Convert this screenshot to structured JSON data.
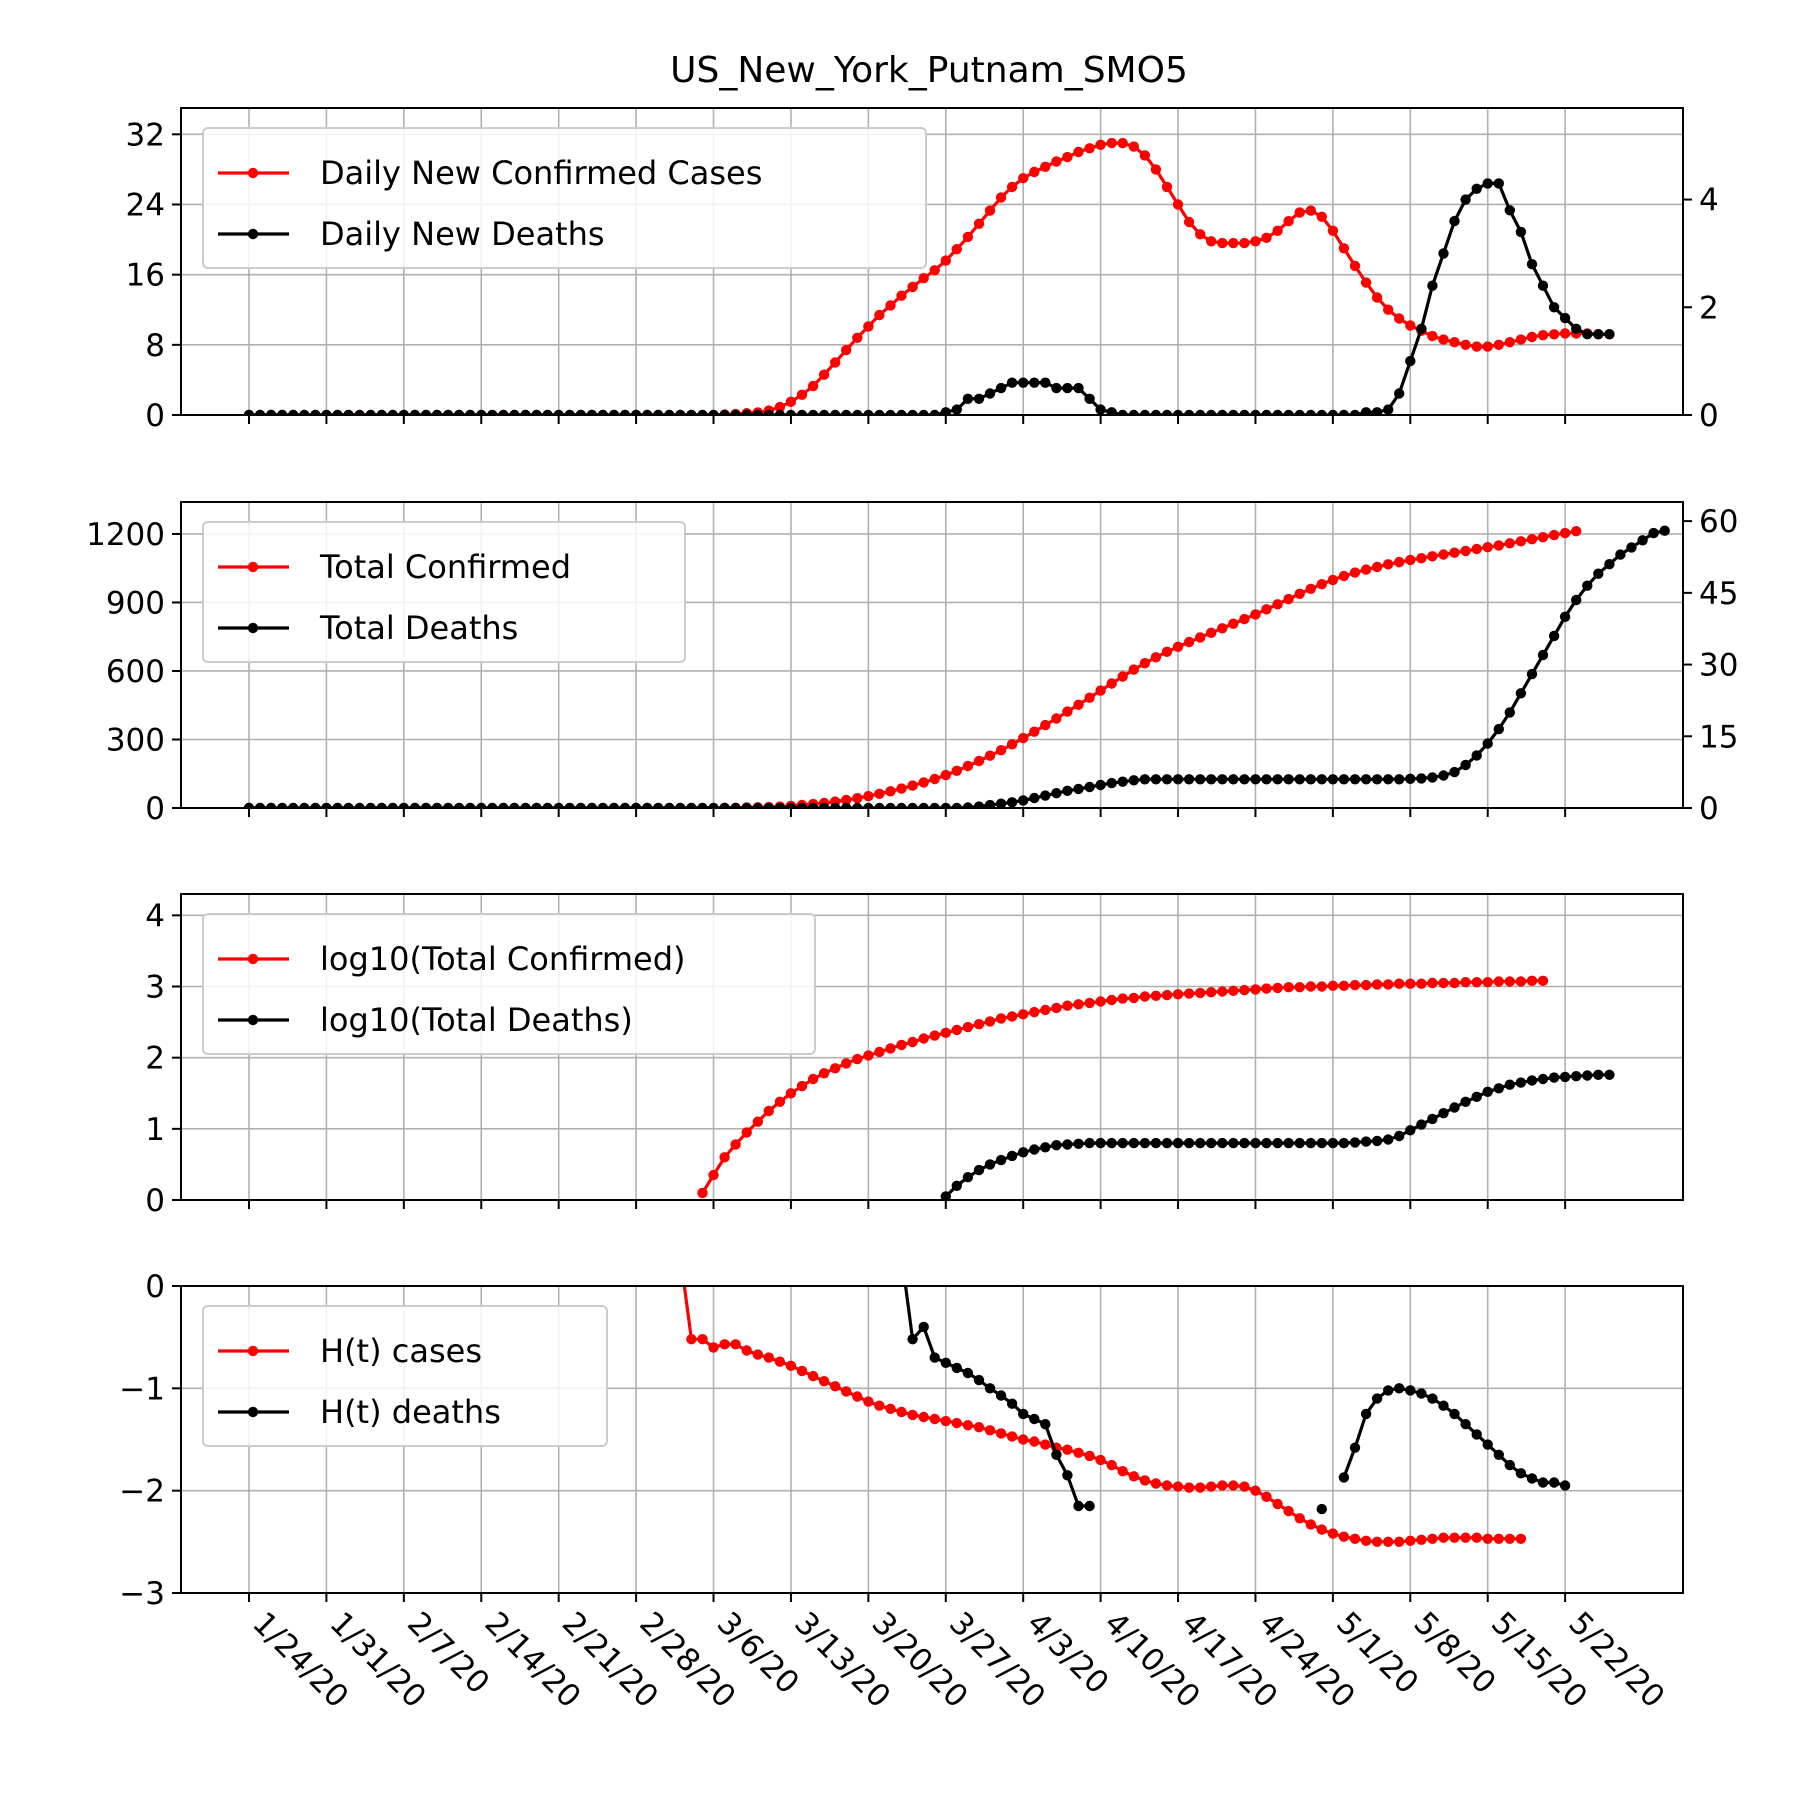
{
  "title": "US_New_York_Putnam_SMO5",
  "x_tick_labels": [
    "1/24/20",
    "1/31/20",
    "2/7/20",
    "2/14/20",
    "2/21/20",
    "2/28/20",
    "3/6/20",
    "3/13/20",
    "3/20/20",
    "3/27/20",
    "4/3/20",
    "4/10/20",
    "4/17/20",
    "4/24/20",
    "5/1/20",
    "5/8/20",
    "5/15/20",
    "5/22/20"
  ],
  "colors": {
    "cases": "#ff0000",
    "deaths": "#000000"
  },
  "chart_data": [
    {
      "type": "line",
      "x_start": "1/24/20",
      "x_step_days": 1,
      "left_yticks": [
        "0",
        "8",
        "16",
        "24",
        "32"
      ],
      "right_yticks": [
        "0",
        "2",
        "4"
      ],
      "left_ylim": [
        0,
        35
      ],
      "right_ylim": [
        0,
        5.7
      ],
      "legend": "top-left",
      "grid": true,
      "series": [
        {
          "name": "Daily New Confirmed Cases",
          "axis": "left",
          "color": "#ff0000",
          "values": [
            0,
            0,
            0,
            0,
            0,
            0,
            0,
            0,
            0,
            0,
            0,
            0,
            0,
            0,
            0,
            0,
            0,
            0,
            0,
            0,
            0,
            0,
            0,
            0,
            0,
            0,
            0,
            0,
            0,
            0,
            0,
            0,
            0,
            0,
            0,
            0,
            0,
            0,
            0,
            0,
            0,
            0,
            0,
            0.05,
            0.1,
            0.2,
            0.3,
            0.5,
            0.9,
            1.5,
            2.3,
            3.3,
            4.6,
            6.0,
            7.4,
            8.8,
            10.1,
            11.4,
            12.5,
            13.6,
            14.6,
            15.6,
            16.5,
            17.6,
            18.9,
            20.3,
            21.8,
            23.3,
            24.8,
            26.0,
            27.0,
            27.7,
            28.3,
            28.9,
            29.4,
            30.0,
            30.4,
            30.8,
            31.0,
            31.0,
            30.6,
            29.6,
            28.0,
            26.0,
            24.0,
            22.0,
            20.6,
            19.8,
            19.6,
            19.6,
            19.6,
            19.8,
            20.2,
            21.0,
            22.1,
            23.1,
            23.3,
            22.6,
            21.0,
            19.0,
            17.0,
            15.1,
            13.4,
            12.0,
            11.0,
            10.2,
            9.6,
            9.0,
            8.6,
            8.3,
            8.0,
            7.8,
            7.8,
            8.0,
            8.3,
            8.6,
            8.9,
            9.1,
            9.2,
            9.3,
            9.3,
            9.3,
            9.2,
            9.2
          ]
        },
        {
          "name": "Daily New Deaths",
          "axis": "right",
          "color": "#000000",
          "values": [
            0,
            0,
            0,
            0,
            0,
            0,
            0,
            0,
            0,
            0,
            0,
            0,
            0,
            0,
            0,
            0,
            0,
            0,
            0,
            0,
            0,
            0,
            0,
            0,
            0,
            0,
            0,
            0,
            0,
            0,
            0,
            0,
            0,
            0,
            0,
            0,
            0,
            0,
            0,
            0,
            0,
            0,
            0,
            0,
            0,
            0,
            0,
            0,
            0,
            0,
            0,
            0,
            0,
            0,
            0,
            0,
            0,
            0,
            0,
            0,
            0,
            0,
            0,
            0.05,
            0.1,
            0.3,
            0.3,
            0.4,
            0.5,
            0.6,
            0.6,
            0.6,
            0.6,
            0.5,
            0.5,
            0.5,
            0.3,
            0.1,
            0.05,
            0,
            0,
            0,
            0,
            0,
            0,
            0,
            0,
            0,
            0,
            0,
            0,
            0,
            0,
            0,
            0,
            0,
            0,
            0,
            0,
            0,
            0,
            0.05,
            0.05,
            0.1,
            0.4,
            1.0,
            1.6,
            2.4,
            3.0,
            3.6,
            4.0,
            4.2,
            4.3,
            4.3,
            3.8,
            3.4,
            2.8,
            2.4,
            2.0,
            1.8,
            1.6,
            1.5,
            1.5,
            1.5
          ]
        }
      ]
    },
    {
      "type": "line",
      "x_start": "1/24/20",
      "x_step_days": 1,
      "left_yticks": [
        "0",
        "300",
        "600",
        "900",
        "1200"
      ],
      "right_yticks": [
        "0",
        "15",
        "30",
        "45",
        "60"
      ],
      "left_ylim": [
        0,
        1340
      ],
      "right_ylim": [
        0,
        64
      ],
      "legend": "top-left",
      "grid": true,
      "series": [
        {
          "name": "Total Confirmed",
          "axis": "left",
          "color": "#ff0000",
          "values": [
            0,
            0,
            0,
            0,
            0,
            0,
            0,
            0,
            0,
            0,
            0,
            0,
            0,
            0,
            0,
            0,
            0,
            0,
            0,
            0,
            0,
            0,
            0,
            0,
            0,
            0,
            0,
            0,
            0,
            0,
            0,
            0,
            0,
            0,
            0,
            0,
            0,
            0,
            0,
            0,
            0,
            0,
            0,
            1,
            1,
            2,
            3,
            4,
            6,
            9,
            13,
            17,
            22,
            28,
            35,
            43,
            52,
            62,
            73,
            85,
            98,
            112,
            127,
            144,
            163,
            184,
            206,
            229,
            253,
            279,
            306,
            334,
            363,
            392,
            422,
            452,
            483,
            514,
            545,
            576,
            606,
            634,
            660,
            684,
            706,
            727,
            747,
            767,
            787,
            807,
            827,
            848,
            870,
            892,
            915,
            938,
            960,
            980,
            999,
            1016,
            1031,
            1044,
            1056,
            1067,
            1077,
            1086,
            1094,
            1102,
            1110,
            1118,
            1126,
            1134,
            1142,
            1150,
            1159,
            1168,
            1177,
            1186,
            1195,
            1204,
            1212
          ]
        },
        {
          "name": "Total Deaths",
          "axis": "right",
          "color": "#000000",
          "values": [
            0,
            0,
            0,
            0,
            0,
            0,
            0,
            0,
            0,
            0,
            0,
            0,
            0,
            0,
            0,
            0,
            0,
            0,
            0,
            0,
            0,
            0,
            0,
            0,
            0,
            0,
            0,
            0,
            0,
            0,
            0,
            0,
            0,
            0,
            0,
            0,
            0,
            0,
            0,
            0,
            0,
            0,
            0,
            0,
            0,
            0,
            0,
            0,
            0,
            0,
            0,
            0,
            0,
            0,
            0,
            0,
            0,
            0,
            0,
            0,
            0,
            0,
            0,
            0,
            0,
            0.1,
            0.3,
            0.6,
            0.9,
            1.2,
            1.6,
            2.1,
            2.6,
            3.1,
            3.6,
            4.0,
            4.4,
            4.8,
            5.2,
            5.5,
            5.8,
            6,
            6,
            6,
            6,
            6,
            6,
            6,
            6,
            6,
            6,
            6,
            6,
            6,
            6,
            6,
            6,
            6,
            6,
            6,
            6,
            6,
            6,
            6,
            6,
            6.1,
            6.2,
            6.4,
            6.8,
            7.5,
            9.0,
            11.0,
            13.5,
            16.5,
            20.0,
            24.0,
            28.0,
            32.0,
            36.0,
            40.0,
            43.5,
            46.5,
            49.0,
            51.0,
            53.0,
            54.5,
            56.0,
            57.5,
            58.0
          ]
        }
      ]
    },
    {
      "type": "line",
      "x_start": "1/24/20",
      "x_step_days": 1,
      "left_yticks": [
        "0",
        "1",
        "2",
        "3",
        "4"
      ],
      "left_ylim": [
        0,
        4.3
      ],
      "legend": "top-left",
      "grid": true,
      "series": [
        {
          "name": "log10(Total Confirmed)",
          "axis": "left",
          "color": "#ff0000",
          "values": [
            null,
            null,
            null,
            null,
            null,
            null,
            null,
            null,
            null,
            null,
            null,
            null,
            null,
            null,
            null,
            null,
            null,
            null,
            null,
            null,
            null,
            null,
            null,
            null,
            null,
            null,
            null,
            null,
            null,
            null,
            null,
            null,
            null,
            null,
            null,
            null,
            null,
            null,
            null,
            null,
            null,
            0.1,
            0.35,
            0.6,
            0.78,
            0.95,
            1.1,
            1.25,
            1.38,
            1.5,
            1.6,
            1.7,
            1.78,
            1.85,
            1.92,
            1.98,
            2.03,
            2.08,
            2.13,
            2.18,
            2.22,
            2.27,
            2.31,
            2.35,
            2.39,
            2.43,
            2.47,
            2.51,
            2.55,
            2.58,
            2.61,
            2.64,
            2.67,
            2.7,
            2.73,
            2.75,
            2.77,
            2.79,
            2.81,
            2.83,
            2.84,
            2.86,
            2.87,
            2.88,
            2.89,
            2.9,
            2.91,
            2.92,
            2.93,
            2.94,
            2.95,
            2.96,
            2.97,
            2.98,
            2.99,
            2.99,
            3.0,
            3.0,
            3.01,
            3.01,
            3.02,
            3.02,
            3.03,
            3.03,
            3.04,
            3.04,
            3.04,
            3.05,
            3.05,
            3.05,
            3.06,
            3.06,
            3.06,
            3.07,
            3.07,
            3.07,
            3.08,
            3.08
          ]
        },
        {
          "name": "log10(Total Deaths)",
          "axis": "left",
          "color": "#000000",
          "values": [
            null,
            null,
            null,
            null,
            null,
            null,
            null,
            null,
            null,
            null,
            null,
            null,
            null,
            null,
            null,
            null,
            null,
            null,
            null,
            null,
            null,
            null,
            null,
            null,
            null,
            null,
            null,
            null,
            null,
            null,
            null,
            null,
            null,
            null,
            null,
            null,
            null,
            null,
            null,
            null,
            null,
            null,
            null,
            null,
            null,
            null,
            null,
            null,
            null,
            null,
            null,
            null,
            null,
            null,
            null,
            null,
            null,
            null,
            null,
            null,
            null,
            null,
            null,
            0.05,
            0.2,
            0.32,
            0.42,
            0.5,
            0.56,
            0.62,
            0.67,
            0.71,
            0.74,
            0.77,
            0.78,
            0.79,
            0.8,
            0.8,
            0.8,
            0.8,
            0.8,
            0.8,
            0.8,
            0.8,
            0.8,
            0.8,
            0.8,
            0.8,
            0.8,
            0.8,
            0.8,
            0.8,
            0.8,
            0.8,
            0.8,
            0.8,
            0.8,
            0.8,
            0.8,
            0.8,
            0.81,
            0.82,
            0.83,
            0.85,
            0.9,
            0.98,
            1.06,
            1.14,
            1.22,
            1.3,
            1.38,
            1.45,
            1.52,
            1.57,
            1.62,
            1.65,
            1.68,
            1.7,
            1.72,
            1.73,
            1.74,
            1.75,
            1.76,
            1.76
          ]
        }
      ]
    },
    {
      "type": "line",
      "x_start": "1/24/20",
      "x_step_days": 1,
      "left_yticks": [
        "0",
        "−1",
        "−2",
        "−3"
      ],
      "left_ylim": [
        -3,
        0
      ],
      "legend": "top-left",
      "grid": true,
      "series": [
        {
          "name": "H(t) cases",
          "axis": "left",
          "color": "#ff0000",
          "values": [
            null,
            null,
            null,
            null,
            null,
            null,
            null,
            null,
            null,
            null,
            null,
            null,
            null,
            null,
            null,
            null,
            null,
            null,
            null,
            null,
            null,
            null,
            null,
            null,
            null,
            null,
            null,
            null,
            null,
            null,
            null,
            null,
            null,
            null,
            null,
            null,
            null,
            null,
            null,
            0.3,
            -0.52,
            -0.52,
            -0.6,
            -0.57,
            -0.57,
            -0.63,
            -0.67,
            -0.7,
            -0.74,
            -0.78,
            -0.83,
            -0.88,
            -0.93,
            -0.98,
            -1.03,
            -1.08,
            -1.13,
            -1.17,
            -1.2,
            -1.23,
            -1.26,
            -1.28,
            -1.3,
            -1.32,
            -1.34,
            -1.36,
            -1.38,
            -1.41,
            -1.44,
            -1.47,
            -1.5,
            -1.52,
            -1.55,
            -1.58,
            -1.6,
            -1.63,
            -1.66,
            -1.7,
            -1.75,
            -1.81,
            -1.86,
            -1.9,
            -1.93,
            -1.95,
            -1.96,
            -1.97,
            -1.97,
            -1.96,
            -1.95,
            -1.95,
            -1.96,
            -2.0,
            -2.06,
            -2.13,
            -2.2,
            -2.27,
            -2.33,
            -2.38,
            -2.42,
            -2.45,
            -2.47,
            -2.49,
            -2.5,
            -2.5,
            -2.5,
            -2.49,
            -2.48,
            -2.47,
            -2.46,
            -2.46,
            -2.46,
            -2.46,
            -2.47,
            -2.47,
            -2.47,
            -2.47
          ]
        },
        {
          "name": "H(t) deaths",
          "axis": "left",
          "color": "#000000",
          "values": [
            null,
            null,
            null,
            null,
            null,
            null,
            null,
            null,
            null,
            null,
            null,
            null,
            null,
            null,
            null,
            null,
            null,
            null,
            null,
            null,
            null,
            null,
            null,
            null,
            null,
            null,
            null,
            null,
            null,
            null,
            null,
            null,
            null,
            null,
            null,
            null,
            null,
            null,
            null,
            null,
            null,
            null,
            null,
            null,
            null,
            null,
            null,
            null,
            null,
            null,
            null,
            null,
            null,
            null,
            null,
            null,
            null,
            null,
            null,
            0.3,
            -0.52,
            -0.4,
            -0.7,
            -0.75,
            -0.8,
            -0.85,
            -0.92,
            -1.0,
            -1.07,
            -1.15,
            -1.25,
            -1.3,
            -1.35,
            -1.65,
            -1.85,
            -2.15,
            -2.15,
            null,
            null,
            null,
            null,
            null,
            null,
            null,
            null,
            null,
            null,
            null,
            null,
            null,
            null,
            null,
            null,
            null,
            null,
            null,
            null,
            -2.18,
            null,
            -1.87,
            -1.58,
            -1.25,
            -1.1,
            -1.02,
            -1.0,
            -1.02,
            -1.05,
            -1.1,
            -1.17,
            -1.25,
            -1.35,
            -1.45,
            -1.55,
            -1.65,
            -1.75,
            -1.83,
            -1.88,
            -1.92,
            -1.92,
            -1.95
          ]
        }
      ]
    }
  ]
}
